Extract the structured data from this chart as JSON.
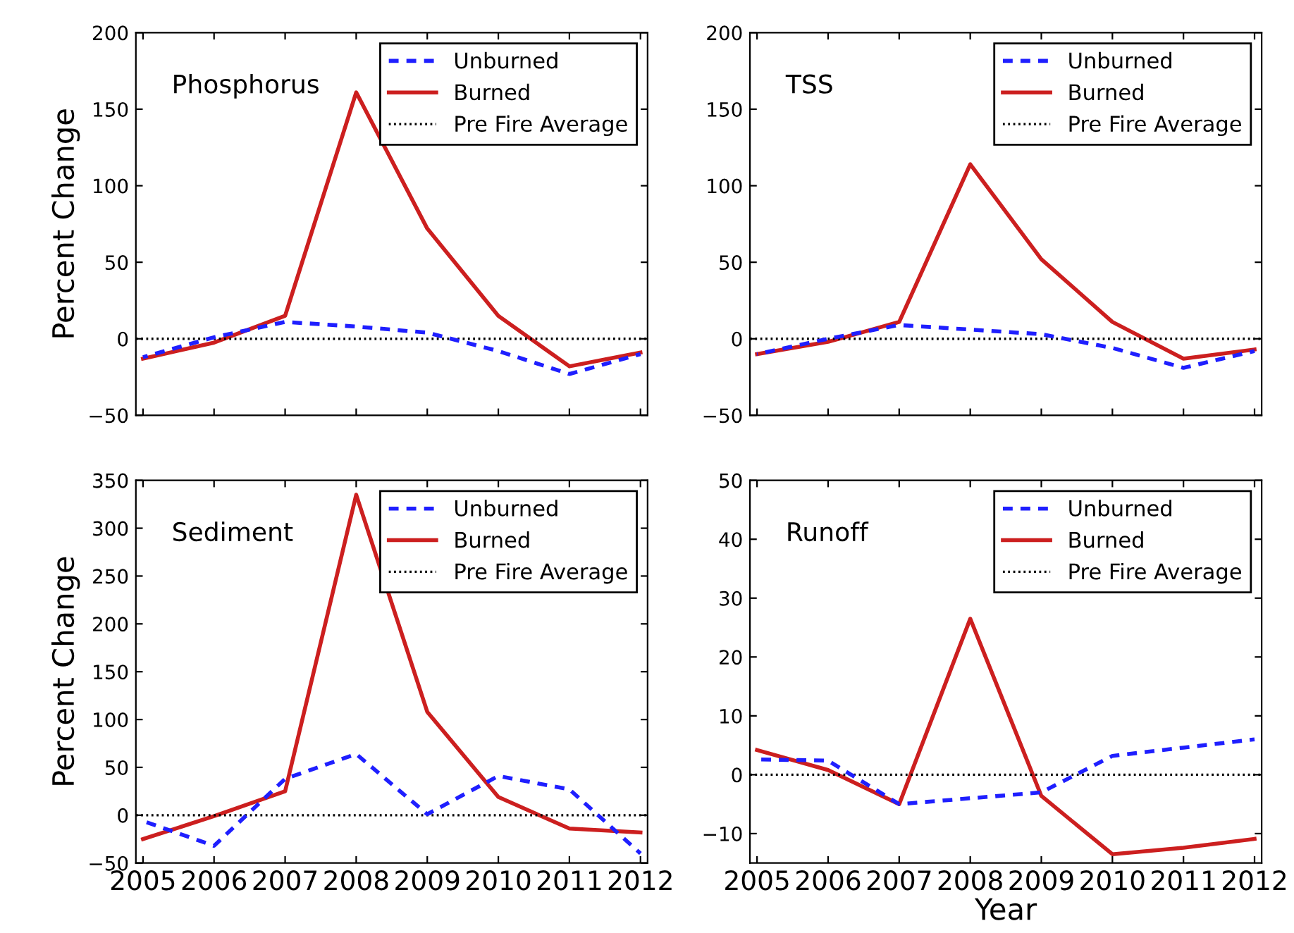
{
  "chart_data": [
    {
      "type": "line",
      "title": "Phosphorus",
      "ylabel": "Percent Change",
      "x": [
        2005,
        2006,
        2007,
        2008,
        2009,
        2010,
        2011,
        2012
      ],
      "xlim": [
        2004.9,
        2012.1
      ],
      "xticks": [
        2005,
        2006,
        2007,
        2008,
        2009,
        2010,
        2011,
        2012
      ],
      "ylim": [
        -50,
        200
      ],
      "yticks": [
        -50,
        0,
        50,
        100,
        150,
        200
      ],
      "tick_labels": "y",
      "legend": "top right",
      "grid": false,
      "series": [
        {
          "name": "Unburned",
          "color": "#1f1fff",
          "line_style": "dashed",
          "values": [
            -12,
            1,
            11,
            8,
            4,
            -8,
            -23,
            -10
          ]
        },
        {
          "name": "Burned",
          "color": "#cc1f1f",
          "line_style": "solid",
          "values": [
            -13,
            -2.5,
            15,
            161,
            72,
            15,
            -18,
            -9
          ]
        }
      ],
      "ref_lines": [
        {
          "axis": "y",
          "value": 0,
          "label": "Pre Fire Average",
          "color": "#000000",
          "line_style": "dotted"
        }
      ]
    },
    {
      "type": "line",
      "title": "TSS",
      "x": [
        2005,
        2006,
        2007,
        2008,
        2009,
        2010,
        2011,
        2012
      ],
      "xlim": [
        2004.9,
        2012.1
      ],
      "xticks": [
        2005,
        2006,
        2007,
        2008,
        2009,
        2010,
        2011,
        2012
      ],
      "ylim": [
        -50,
        200
      ],
      "yticks": [
        -50,
        0,
        50,
        100,
        150,
        200
      ],
      "tick_labels": "y",
      "legend": "top right",
      "grid": false,
      "series": [
        {
          "name": "Unburned",
          "color": "#1f1fff",
          "line_style": "dashed",
          "values": [
            -10,
            0,
            9,
            6,
            3,
            -6,
            -19,
            -8
          ]
        },
        {
          "name": "Burned",
          "color": "#cc1f1f",
          "line_style": "solid",
          "values": [
            -10,
            -2,
            11,
            114,
            52,
            11,
            -13,
            -7
          ]
        }
      ],
      "ref_lines": [
        {
          "axis": "y",
          "value": 0,
          "label": "Pre Fire Average",
          "color": "#000000",
          "line_style": "dotted"
        }
      ]
    },
    {
      "type": "line",
      "title": "Sediment",
      "ylabel": "Percent Change",
      "x": [
        2005,
        2006,
        2007,
        2008,
        2009,
        2010,
        2011,
        2012
      ],
      "xlim": [
        2004.9,
        2012.1
      ],
      "xticks": [
        2005,
        2006,
        2007,
        2008,
        2009,
        2010,
        2011,
        2012
      ],
      "ylim": [
        -50,
        350
      ],
      "yticks": [
        -50,
        0,
        50,
        100,
        150,
        200,
        250,
        300,
        350
      ],
      "legend": "top right",
      "grid": false,
      "series": [
        {
          "name": "Unburned",
          "color": "#1f1fff",
          "line_style": "dashed",
          "values": [
            -6,
            -32,
            38,
            64,
            1,
            41,
            27,
            -40
          ]
        },
        {
          "name": "Burned",
          "color": "#cc1f1f",
          "line_style": "solid",
          "values": [
            -25,
            -1,
            25,
            335,
            108,
            19,
            -14,
            -18
          ]
        }
      ],
      "ref_lines": [
        {
          "axis": "y",
          "value": 0,
          "label": "Pre Fire Average",
          "color": "#000000",
          "line_style": "dotted"
        }
      ]
    },
    {
      "type": "line",
      "title": "Runoff",
      "xlabel": "Year",
      "x": [
        2005,
        2006,
        2007,
        2008,
        2009,
        2010,
        2011,
        2012
      ],
      "xlim": [
        2004.9,
        2012.1
      ],
      "xticks": [
        2005,
        2006,
        2007,
        2008,
        2009,
        2010,
        2011,
        2012
      ],
      "ylim": [
        -15,
        50
      ],
      "yticks": [
        -10,
        0,
        10,
        20,
        30,
        40,
        50
      ],
      "legend": "top right",
      "grid": false,
      "series": [
        {
          "name": "Unburned",
          "color": "#1f1fff",
          "line_style": "dashed",
          "values": [
            2.6,
            2.4,
            -5,
            -4,
            -3,
            3.2,
            4.6,
            6
          ]
        },
        {
          "name": "Burned",
          "color": "#cc1f1f",
          "line_style": "solid",
          "values": [
            4.2,
            0.8,
            -5,
            26.5,
            -3.6,
            -13.5,
            -12.4,
            -10.9
          ]
        }
      ],
      "ref_lines": [
        {
          "axis": "y",
          "value": 0,
          "label": "Pre Fire Average",
          "color": "#000000",
          "line_style": "dotted"
        }
      ]
    }
  ]
}
